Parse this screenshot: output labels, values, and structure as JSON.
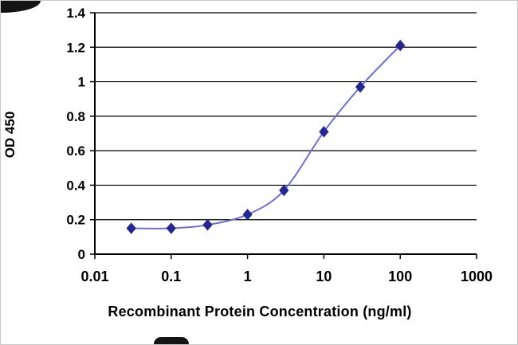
{
  "page": {
    "background": "#ffffff",
    "border_color": "#c9c9c9"
  },
  "chart_data": {
    "type": "line",
    "title": "",
    "xlabel": "Recombinant Protein Concentration (ng/ml)",
    "ylabel": "OD 450",
    "x_scale": "log",
    "xlim": [
      0.01,
      1000
    ],
    "ylim": [
      0,
      1.4
    ],
    "x_ticks": [
      0.01,
      0.1,
      1,
      10,
      100,
      1000
    ],
    "x_tick_labels": [
      "0.01",
      "0.1",
      "1",
      "10",
      "100",
      "1000"
    ],
    "y_ticks": [
      0,
      0.2,
      0.4,
      0.6,
      0.8,
      1,
      1.2,
      1.4
    ],
    "y_tick_labels": [
      "0",
      "0.2",
      "0.4",
      "0.6",
      "0.8",
      "1",
      "1.2",
      "1.4"
    ],
    "grid": "horizontal",
    "grid_color": "#000000",
    "axis_color": "#000000",
    "legend": "none",
    "series": [
      {
        "name": "OD 450",
        "x": [
          0.03,
          0.1,
          0.3,
          1,
          3,
          10,
          30,
          100
        ],
        "y": [
          0.15,
          0.15,
          0.17,
          0.23,
          0.37,
          0.71,
          0.97,
          1.21
        ],
        "line_color": "#7070cc",
        "marker_color": "#26268f",
        "marker": "diamond",
        "smooth": true
      }
    ]
  }
}
